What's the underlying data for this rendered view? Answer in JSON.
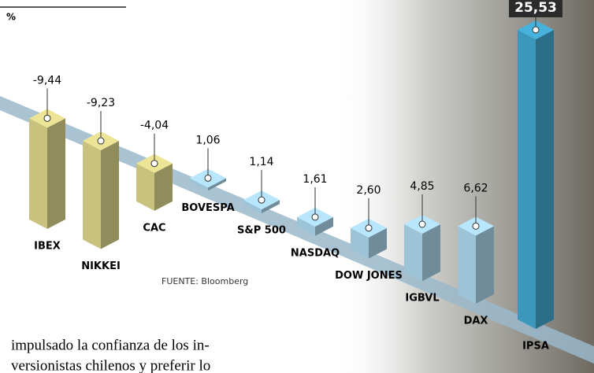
{
  "chart_data": {
    "type": "bar3d",
    "unit": "%",
    "categories": [
      "IBEX",
      "NIKKEI",
      "CAC",
      "BOVESPA",
      "S&P 500",
      "NASDAQ",
      "DOW JONES",
      "IGBVL",
      "DAX",
      "IPSA"
    ],
    "values": [
      -9.44,
      -9.23,
      -4.04,
      1.06,
      1.14,
      1.61,
      2.6,
      4.85,
      6.62,
      25.53
    ],
    "value_labels": [
      "-9,44",
      "-9,23",
      "-4,04",
      "1,06",
      "1,14",
      "1,61",
      "2,60",
      "4,85",
      "6,62",
      "25,53"
    ],
    "colors": [
      "#c9c27e",
      "#c9c27e",
      "#c9c27e",
      "#9cc3d6",
      "#9cc3d6",
      "#9cc3d6",
      "#9cc3d6",
      "#9cc3d6",
      "#9cc3d6",
      "#3d97bd"
    ],
    "source": "FUENTE: Bloomberg"
  },
  "body_text": [
    "impulsado la confianza de los in-",
    "versionistas chilenos y preferir lo"
  ]
}
